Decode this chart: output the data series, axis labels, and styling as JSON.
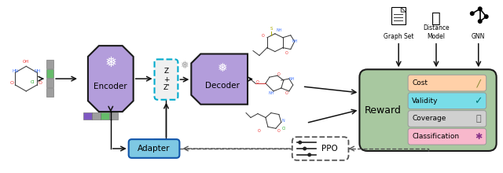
{
  "bg_color": "#ffffff",
  "encoder_color": "#b39ddb",
  "encoder_border": "#1a1a1a",
  "decoder_color": "#b39ddb",
  "decoder_border": "#1a1a1a",
  "adapter_color": "#7ec8e3",
  "adapter_border": "#1a1a1a",
  "reward_color": "#a8c8a0",
  "reward_border": "#1a1a1a",
  "ppo_color": "#ffffff",
  "z_box_color": "#f0f0f0",
  "z_box_border": "#00aacc",
  "cost_color": "#ffd0a8",
  "validity_color": "#78dde8",
  "coverage_color": "#d0d0d0",
  "classification_color": "#f8b8cc",
  "reward_items": [
    "Cost",
    "Validity",
    "Coverage",
    "Classification"
  ],
  "reward_item_colors": [
    "#ffd0a8",
    "#78dde8",
    "#d0d0d0",
    "#f8b8cc"
  ],
  "snowflake": "❅",
  "graph_set_label": "Graph Set",
  "distance_label": "Distance\nModel",
  "gnn_label": "GNN",
  "vec_top_colors": [
    "#9e9e9e",
    "#66bb6a",
    "#9e9e9e",
    "#9e9e9e"
  ],
  "vec_bot_colors": [
    "#7e57c2",
    "#9e9e9e",
    "#66bb6a",
    "#9e9e9e"
  ],
  "arrow_color": "#111111",
  "dash_color": "#555555"
}
